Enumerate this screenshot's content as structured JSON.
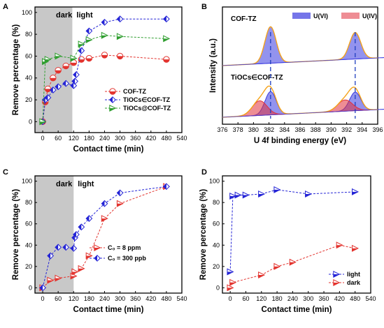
{
  "panels": {
    "A": {
      "label": "A"
    },
    "B": {
      "label": "B"
    },
    "C": {
      "label": "C"
    },
    "D": {
      "label": "D"
    }
  },
  "colors": {
    "red": "#e3342f",
    "blue": "#2424d6",
    "green": "#2f9e2f",
    "dark_region": "#c8c8c8",
    "u6_fill": "#3a3ae0",
    "u4_fill": "#e0303c",
    "envelope": "#f5a31a",
    "b_guide": "#1f3fbf"
  },
  "chart_data": [
    {
      "panel": "A",
      "type": "line",
      "xlabel": "Contact time (min)",
      "ylabel": "Remove percentage (%)",
      "xlim": [
        -30,
        540
      ],
      "ylim": [
        -10,
        105
      ],
      "xticks": [
        0,
        60,
        120,
        180,
        240,
        300,
        360,
        420,
        480,
        540
      ],
      "yticks": [
        0,
        20,
        40,
        60,
        80,
        100
      ],
      "shaded_region": {
        "x0": -30,
        "x1": 115,
        "label_left": "dark",
        "label_right": "light"
      },
      "legend_position": "bottom-right",
      "series": [
        {
          "name": "COF-TZ",
          "marker": "circle",
          "color": "#e3342f",
          "x": [
            0,
            10,
            20,
            40,
            60,
            90,
            120,
            150,
            180,
            240,
            300,
            480
          ],
          "y": [
            0,
            18,
            30,
            40,
            47,
            51,
            54,
            57,
            58,
            61,
            60,
            57
          ]
        },
        {
          "name": "TiOCs∈COF-TZ",
          "marker": "diamond",
          "color": "#2424d6",
          "x": [
            0,
            10,
            20,
            40,
            60,
            90,
            120,
            125,
            130,
            150,
            180,
            240,
            300,
            480
          ],
          "y": [
            0,
            20,
            22,
            29,
            32,
            35,
            33,
            37,
            43,
            65,
            83,
            91,
            94,
            94
          ]
        },
        {
          "name": "TiOCs@COF-TZ",
          "marker": "triangle-right",
          "color": "#2f9e2f",
          "x": [
            0,
            10,
            20,
            60,
            120,
            150,
            180,
            240,
            300,
            480
          ],
          "y": [
            0,
            55,
            57,
            60,
            58,
            71,
            75,
            79,
            78,
            76
          ]
        }
      ]
    },
    {
      "panel": "B",
      "type": "line",
      "title": "COF-TZ",
      "xlabel": "U 4f  binding energy (eV)",
      "ylabel": "Intensity (a.u.)",
      "xlim": [
        376,
        396
      ],
      "xticks": [
        376,
        378,
        380,
        382,
        384,
        386,
        388,
        390,
        392,
        394,
        396
      ],
      "legend_position": "top-right",
      "legend": [
        "U(VI)",
        "U(IV)"
      ],
      "reference_lines_ev": [
        382.2,
        393.1
      ],
      "spectra": [
        {
          "name": "COF-TZ",
          "components": [
            {
              "species": "U(VI)",
              "center": 382.2,
              "amplitude": 0.55,
              "width": 0.72
            },
            {
              "species": "U(VI)",
              "center": 393.1,
              "amplitude": 0.4,
              "width": 0.72
            }
          ]
        },
        {
          "name": "TiOCs∈COF-TZ",
          "components": [
            {
              "species": "U(VI)",
              "center": 382.2,
              "amplitude": 0.35,
              "width": 0.72
            },
            {
              "species": "U(IV)",
              "center": 380.8,
              "amplitude": 0.22,
              "width": 0.95
            },
            {
              "species": "U(VI)",
              "center": 393.1,
              "amplitude": 0.28,
              "width": 0.72
            },
            {
              "species": "U(IV)",
              "center": 391.8,
              "amplitude": 0.17,
              "width": 0.95
            }
          ]
        }
      ]
    },
    {
      "panel": "C",
      "type": "line",
      "xlabel": "Contact time (min)",
      "ylabel": "Remove percentage (%)",
      "xlim": [
        -30,
        540
      ],
      "ylim": [
        -5,
        105
      ],
      "xticks": [
        0,
        60,
        120,
        180,
        240,
        300,
        360,
        420,
        480,
        540
      ],
      "yticks": [
        0,
        20,
        40,
        60,
        80,
        100
      ],
      "shaded_region": {
        "x0": -30,
        "x1": 120,
        "label_left": "dark",
        "label_right": "light"
      },
      "legend_position": "center",
      "series": [
        {
          "name": "C₀ = 8 ppm",
          "marker": "triangle-right",
          "color": "#e3342f",
          "x": [
            0,
            30,
            60,
            120,
            125,
            150,
            180,
            240,
            300,
            480
          ],
          "y": [
            0,
            7,
            9,
            11,
            15,
            18,
            30,
            65,
            79,
            95
          ]
        },
        {
          "name": "C₀ = 300 ppb",
          "marker": "diamond",
          "color": "#2424d6",
          "x": [
            0,
            30,
            60,
            90,
            120,
            125,
            130,
            150,
            180,
            240,
            300,
            480
          ],
          "y": [
            0,
            30,
            38,
            38,
            37,
            47,
            50,
            57,
            65,
            79,
            89,
            95
          ]
        }
      ]
    },
    {
      "panel": "D",
      "type": "line",
      "xlabel": "Contact time (min)",
      "ylabel": "Remove percentage (%)",
      "xlim": [
        -30,
        540
      ],
      "ylim": [
        -5,
        105
      ],
      "xticks": [
        0,
        60,
        120,
        180,
        240,
        300,
        360,
        420,
        480,
        540
      ],
      "yticks": [
        0,
        20,
        40,
        60,
        80,
        100
      ],
      "legend_position": "bottom-right",
      "series": [
        {
          "name": "light",
          "marker": "triangle-right",
          "color": "#2424d6",
          "x": [
            0,
            10,
            30,
            60,
            120,
            180,
            300,
            480
          ],
          "y": [
            15,
            86,
            87,
            87,
            88,
            92,
            88,
            90
          ]
        },
        {
          "name": "dark",
          "marker": "triangle-right",
          "color": "#e3342f",
          "x": [
            0,
            10,
            120,
            180,
            240,
            420,
            480
          ],
          "y": [
            0,
            5,
            12,
            20,
            24,
            40,
            37
          ]
        }
      ]
    }
  ]
}
